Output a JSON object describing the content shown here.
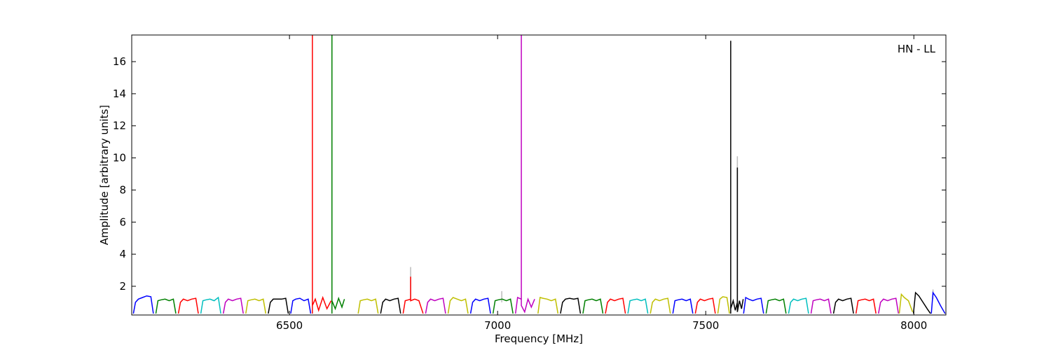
{
  "chart_data": {
    "type": "line",
    "xlabel": "Frequency [MHz]",
    "ylabel": "Amplitude [arbitrary units]",
    "annotation": "HN - LL",
    "xlim": [
      6121,
      8077
    ],
    "ylim": [
      0.21,
      17.66
    ],
    "xticks": [
      6500,
      7000,
      7500,
      8000
    ],
    "yticks": [
      2,
      4,
      6,
      8,
      10,
      12,
      14,
      16
    ],
    "series": [
      {
        "color": "#bbbbbb",
        "x": [
          6791,
          6791
        ],
        "values": [
          1.2,
          3.2
        ]
      },
      {
        "color": "#bbbbbb",
        "x": [
          7010,
          7010
        ],
        "values": [
          1.0,
          1.7
        ]
      },
      {
        "color": "#bbbbbb",
        "x": [
          7576,
          7576
        ],
        "values": [
          1.0,
          10.1
        ]
      },
      {
        "color": "#bbbbbb",
        "x": [
          8046,
          8046
        ],
        "values": [
          1.2,
          1.8
        ]
      },
      {
        "color": "#0000ff",
        "x": [
          6125,
          6130,
          6137,
          6147,
          6157,
          6167,
          6173
        ],
        "values": [
          0.3,
          1.0,
          1.2,
          1.3,
          1.4,
          1.35,
          0.3
        ]
      },
      {
        "color": "#008000",
        "x": [
          6179,
          6184,
          6191,
          6201,
          6211,
          6221,
          6227
        ],
        "values": [
          0.3,
          1.1,
          1.15,
          1.2,
          1.1,
          1.2,
          0.3
        ]
      },
      {
        "color": "#ff0000",
        "x": [
          6233,
          6238,
          6245,
          6255,
          6265,
          6275,
          6281
        ],
        "values": [
          0.3,
          1.0,
          1.2,
          1.1,
          1.2,
          1.25,
          0.3
        ]
      },
      {
        "color": "#00bfbf",
        "x": [
          6287,
          6292,
          6299,
          6309,
          6319,
          6329,
          6335
        ],
        "values": [
          0.3,
          1.1,
          1.15,
          1.2,
          1.1,
          1.3,
          0.3
        ]
      },
      {
        "color": "#bf00bf",
        "x": [
          6341,
          6346,
          6353,
          6363,
          6373,
          6383,
          6389
        ],
        "values": [
          0.3,
          1.0,
          1.2,
          1.1,
          1.2,
          1.25,
          0.3
        ]
      },
      {
        "color": "#bfbf00",
        "x": [
          6395,
          6400,
          6407,
          6417,
          6427,
          6437,
          6443
        ],
        "values": [
          0.3,
          1.1,
          1.15,
          1.2,
          1.1,
          1.2,
          0.3
        ]
      },
      {
        "color": "#000000",
        "x": [
          6449,
          6454,
          6461,
          6471,
          6481,
          6491,
          6497
        ],
        "values": [
          0.3,
          1.0,
          1.2,
          1.2,
          1.2,
          1.25,
          0.3
        ]
      },
      {
        "color": "#0000ff",
        "x": [
          6503,
          6508,
          6515,
          6525,
          6535,
          6545,
          6551
        ],
        "values": [
          0.3,
          1.1,
          1.2,
          1.25,
          1.1,
          1.2,
          0.3
        ]
      },
      {
        "color": "#ff0000",
        "x": [
          6555,
          6555,
          6555,
          6562,
          6570,
          6580,
          6590,
          6600
        ],
        "values": [
          0.3,
          18,
          0.8,
          1.2,
          0.5,
          1.3,
          0.6,
          1.1
        ]
      },
      {
        "color": "#008000",
        "x": [
          6602,
          6602,
          6602,
          6610,
          6618,
          6626,
          6632
        ],
        "values": [
          0.3,
          18,
          1.1,
          0.6,
          1.25,
          0.7,
          1.2
        ]
      },
      {
        "color": "#bfbf00",
        "x": [
          6665,
          6670,
          6677,
          6687,
          6697,
          6707,
          6713
        ],
        "values": [
          0.3,
          1.1,
          1.15,
          1.2,
          1.1,
          1.2,
          0.3
        ]
      },
      {
        "color": "#000000",
        "x": [
          6719,
          6724,
          6731,
          6741,
          6751,
          6761,
          6767
        ],
        "values": [
          0.3,
          1.0,
          1.2,
          1.1,
          1.2,
          1.25,
          0.3
        ]
      },
      {
        "color": "#ff0000",
        "x": [
          6773,
          6778,
          6785,
          6791,
          6791,
          6791,
          6801,
          6811,
          6821
        ],
        "values": [
          0.3,
          1.1,
          1.15,
          1.2,
          2.6,
          1.1,
          1.2,
          1.1,
          0.3
        ]
      },
      {
        "color": "#bf00bf",
        "x": [
          6827,
          6832,
          6839,
          6849,
          6859,
          6869,
          6875
        ],
        "values": [
          0.3,
          1.0,
          1.2,
          1.1,
          1.2,
          1.25,
          0.3
        ]
      },
      {
        "color": "#bfbf00",
        "x": [
          6881,
          6886,
          6893,
          6903,
          6913,
          6923,
          6929
        ],
        "values": [
          0.3,
          1.1,
          1.3,
          1.2,
          1.1,
          1.2,
          0.3
        ]
      },
      {
        "color": "#0000ff",
        "x": [
          6935,
          6940,
          6947,
          6957,
          6967,
          6977,
          6983
        ],
        "values": [
          0.3,
          1.0,
          1.2,
          1.1,
          1.2,
          1.25,
          0.3
        ]
      },
      {
        "color": "#008000",
        "x": [
          6989,
          6994,
          7001,
          7011,
          7021,
          7031,
          7037
        ],
        "values": [
          0.3,
          1.1,
          1.15,
          1.2,
          1.1,
          1.2,
          0.3
        ]
      },
      {
        "color": "#bf00bf",
        "x": [
          7043,
          7048,
          7057,
          7057,
          7057,
          7065,
          7073,
          7081,
          7089
        ],
        "values": [
          0.3,
          1.3,
          1.2,
          18,
          0.8,
          0.4,
          1.2,
          0.7,
          1.2
        ]
      },
      {
        "color": "#bfbf00",
        "x": [
          7097,
          7102,
          7109,
          7119,
          7129,
          7139,
          7145
        ],
        "values": [
          0.3,
          1.3,
          1.25,
          1.2,
          1.1,
          1.2,
          0.3
        ]
      },
      {
        "color": "#000000",
        "x": [
          7151,
          7156,
          7163,
          7173,
          7183,
          7193,
          7199
        ],
        "values": [
          0.3,
          1.0,
          1.2,
          1.25,
          1.2,
          1.25,
          0.3
        ]
      },
      {
        "color": "#008000",
        "x": [
          7205,
          7210,
          7217,
          7227,
          7237,
          7247,
          7253
        ],
        "values": [
          0.3,
          1.1,
          1.15,
          1.2,
          1.1,
          1.2,
          0.3
        ]
      },
      {
        "color": "#ff0000",
        "x": [
          7259,
          7264,
          7271,
          7281,
          7291,
          7301,
          7307
        ],
        "values": [
          0.3,
          1.0,
          1.2,
          1.1,
          1.2,
          1.25,
          0.3
        ]
      },
      {
        "color": "#00bfbf",
        "x": [
          7313,
          7318,
          7325,
          7335,
          7345,
          7355,
          7361
        ],
        "values": [
          0.3,
          1.1,
          1.15,
          1.2,
          1.1,
          1.2,
          0.3
        ]
      },
      {
        "color": "#bfbf00",
        "x": [
          7367,
          7372,
          7379,
          7389,
          7399,
          7409,
          7415
        ],
        "values": [
          0.3,
          1.0,
          1.2,
          1.1,
          1.2,
          1.25,
          0.3
        ]
      },
      {
        "color": "#0000ff",
        "x": [
          7421,
          7426,
          7433,
          7443,
          7453,
          7463,
          7469
        ],
        "values": [
          0.3,
          1.1,
          1.15,
          1.2,
          1.1,
          1.2,
          0.3
        ]
      },
      {
        "color": "#ff0000",
        "x": [
          7475,
          7480,
          7487,
          7497,
          7507,
          7517,
          7523
        ],
        "values": [
          0.3,
          1.0,
          1.2,
          1.1,
          1.2,
          1.25,
          0.3
        ]
      },
      {
        "color": "#bfbf00",
        "x": [
          7529,
          7534,
          7541,
          7551,
          7557
        ],
        "values": [
          0.3,
          1.2,
          1.35,
          1.3,
          0.3
        ]
      },
      {
        "color": "#000000",
        "x": [
          7560,
          7560,
          7560,
          7566,
          7571,
          7576,
          7576,
          7576,
          7581,
          7586,
          7590
        ],
        "values": [
          0.3,
          17.3,
          0.6,
          1.1,
          0.5,
          1.0,
          9.4,
          0.4,
          1.1,
          0.6,
          1.2
        ]
      },
      {
        "color": "#0000ff",
        "x": [
          7591,
          7596,
          7603,
          7613,
          7623,
          7633,
          7639
        ],
        "values": [
          0.3,
          1.3,
          1.2,
          1.1,
          1.2,
          1.25,
          0.3
        ]
      },
      {
        "color": "#008000",
        "x": [
          7645,
          7650,
          7657,
          7667,
          7677,
          7687,
          7693
        ],
        "values": [
          0.3,
          1.1,
          1.15,
          1.2,
          1.1,
          1.2,
          0.3
        ]
      },
      {
        "color": "#00bfbf",
        "x": [
          7699,
          7704,
          7711,
          7721,
          7731,
          7741,
          7747
        ],
        "values": [
          0.3,
          1.0,
          1.2,
          1.1,
          1.2,
          1.25,
          0.3
        ]
      },
      {
        "color": "#bf00bf",
        "x": [
          7753,
          7758,
          7765,
          7775,
          7785,
          7795,
          7801
        ],
        "values": [
          0.3,
          1.1,
          1.15,
          1.2,
          1.1,
          1.2,
          0.3
        ]
      },
      {
        "color": "#000000",
        "x": [
          7807,
          7812,
          7819,
          7829,
          7839,
          7849,
          7855
        ],
        "values": [
          0.3,
          1.0,
          1.2,
          1.1,
          1.2,
          1.25,
          0.3
        ]
      },
      {
        "color": "#ff0000",
        "x": [
          7861,
          7866,
          7873,
          7883,
          7893,
          7903,
          7909
        ],
        "values": [
          0.3,
          1.1,
          1.15,
          1.2,
          1.1,
          1.2,
          0.3
        ]
      },
      {
        "color": "#bf00bf",
        "x": [
          7915,
          7920,
          7927,
          7937,
          7947,
          7957,
          7963
        ],
        "values": [
          0.3,
          1.0,
          1.2,
          1.1,
          1.2,
          1.25,
          0.3
        ]
      },
      {
        "color": "#bfbf00",
        "x": [
          7965,
          7970,
          7977,
          7987,
          7997
        ],
        "values": [
          0.3,
          1.5,
          1.3,
          1.1,
          0.4
        ]
      },
      {
        "color": "#000000",
        "x": [
          7999,
          8004,
          8012,
          8022,
          8032,
          8040
        ],
        "values": [
          0.3,
          1.6,
          1.4,
          1.0,
          0.6,
          0.3
        ]
      },
      {
        "color": "#0000ff",
        "x": [
          8042,
          8046,
          8054,
          8064,
          8075
        ],
        "values": [
          0.3,
          1.6,
          1.3,
          0.8,
          0.3
        ]
      }
    ]
  }
}
